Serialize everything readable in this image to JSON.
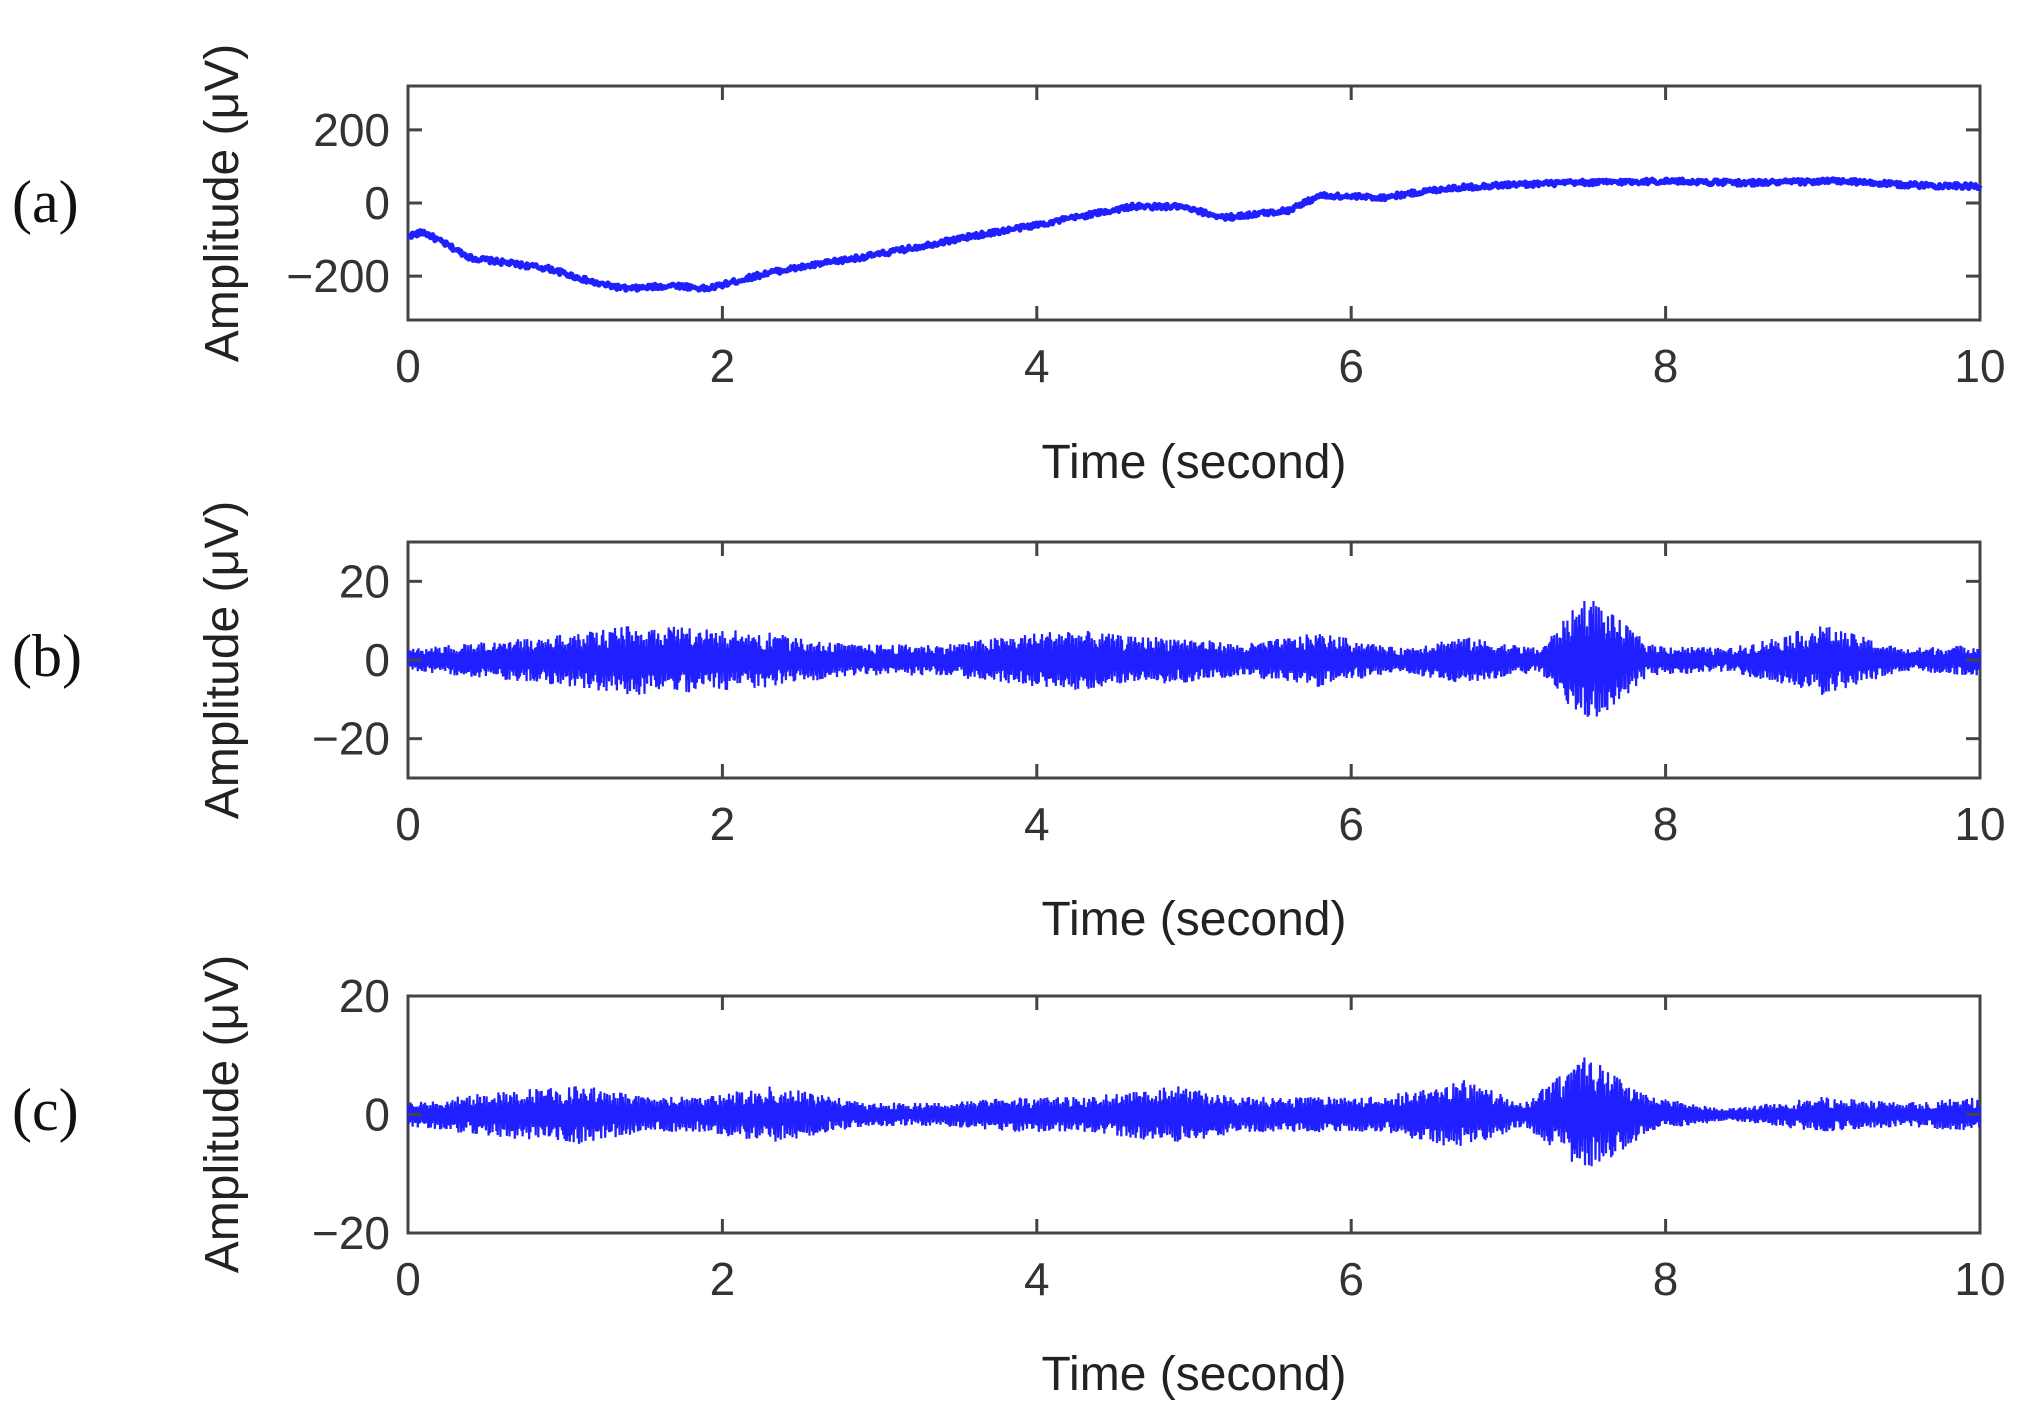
{
  "colors": {
    "signal": "#1f1fff",
    "axis": "#444444",
    "text": "#222222"
  },
  "chart_data": [
    {
      "type": "line",
      "panel_label": "(a)",
      "xlabel": "Time (second)",
      "ylabel": "Amplitude (μV)",
      "xlim": [
        0,
        10
      ],
      "ylim": [
        -320,
        320
      ],
      "xticks": [
        0,
        2,
        4,
        6,
        8,
        10
      ],
      "yticks": [
        200,
        0,
        -200
      ],
      "ytick_labels": [
        "200",
        "0",
        "−200"
      ],
      "series": [
        {
          "x": [
            0,
            0.1,
            0.4,
            0.9,
            1.2,
            1.4,
            1.7,
            1.9,
            2.3,
            3.0,
            3.6,
            4.0,
            4.6,
            4.9,
            5.2,
            5.6,
            5.8,
            6.2,
            6.6,
            7.0,
            7.4,
            8.0,
            8.5,
            9.1,
            9.5,
            10.0
          ],
          "y": [
            -90,
            -80,
            -150,
            -180,
            -220,
            -235,
            -225,
            -235,
            -190,
            -140,
            -90,
            -60,
            -10,
            -10,
            -40,
            -20,
            20,
            15,
            40,
            50,
            55,
            60,
            55,
            60,
            50,
            45
          ]
        }
      ]
    },
    {
      "type": "line",
      "panel_label": "(b)",
      "xlabel": "Time (second)",
      "ylabel": "Amplitude (μV)",
      "xlim": [
        0,
        10
      ],
      "ylim": [
        -30,
        30
      ],
      "xticks": [
        0,
        2,
        4,
        6,
        8,
        10
      ],
      "yticks": [
        20,
        0,
        -20
      ],
      "ytick_labels": [
        "20",
        "0",
        "−20"
      ],
      "series": [
        {
          "x": [
            0,
            0.3,
            0.6,
            1.1,
            1.4,
            1.9,
            2.3,
            2.8,
            3.4,
            4.2,
            4.6,
            4.9,
            5.3,
            5.8,
            6.3,
            6.7,
            7.2,
            7.5,
            7.9,
            8.4,
            9.0,
            9.5,
            10.0
          ],
          "y": [
            3,
            4,
            5,
            7,
            9,
            8,
            7,
            4,
            4,
            8,
            6,
            6,
            4,
            7,
            3,
            6,
            3,
            17,
            4,
            3,
            9,
            3,
            4
          ]
        }
      ]
    },
    {
      "type": "line",
      "panel_label": "(c)",
      "xlabel": "Time (second)",
      "ylabel": "Amplitude (μV)",
      "xlim": [
        0,
        10
      ],
      "ylim": [
        -20,
        20
      ],
      "xticks": [
        0,
        2,
        4,
        6,
        8,
        10
      ],
      "yticks": [
        20,
        0,
        -20
      ],
      "ytick_labels": [
        "20",
        "0",
        "−20"
      ],
      "series": [
        {
          "x": [
            0,
            0.3,
            0.6,
            1.1,
            1.5,
            1.9,
            2.3,
            2.9,
            3.4,
            3.9,
            4.3,
            4.6,
            4.9,
            5.3,
            5.8,
            6.2,
            6.7,
            7.1,
            7.5,
            7.9,
            8.4,
            9.0,
            9.5,
            10.0
          ],
          "y": [
            2,
            3,
            4,
            5,
            3,
            3,
            5,
            2,
            2,
            3,
            3,
            4,
            5,
            3,
            3,
            3,
            6,
            2,
            10,
            3,
            1,
            3,
            2,
            3
          ]
        }
      ]
    }
  ]
}
